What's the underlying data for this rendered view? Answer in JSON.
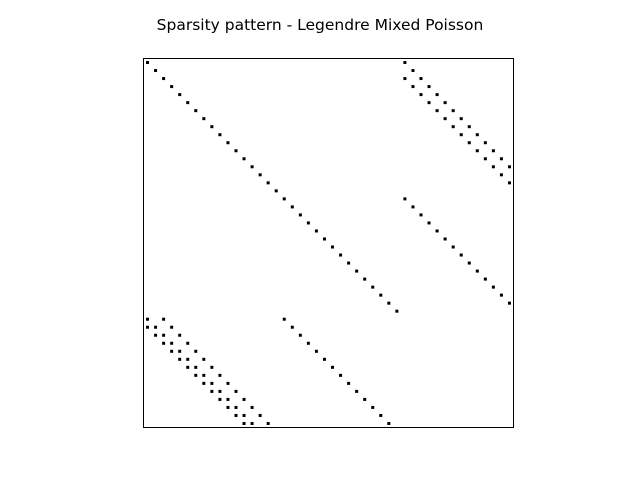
{
  "chart_data": {
    "type": "scatter",
    "title": "Sparsity pattern - Legendre Mixed Poisson",
    "xlabel": "",
    "ylabel": "",
    "matrix_size": 46,
    "axes_ticks": false,
    "grid": false,
    "marker_color": "#000000",
    "xlim": [
      -0.5,
      45.5
    ],
    "ylim": [
      45.5,
      -0.5
    ],
    "segments": [
      {
        "row_start": 0,
        "col_start": 0,
        "count": 32
      },
      {
        "row_start": 0,
        "col_start": 32,
        "count": 14
      },
      {
        "row_start": 1,
        "col_start": 33,
        "count": 13
      },
      {
        "row_start": 2,
        "col_start": 32,
        "count": 14
      },
      {
        "row_start": 17,
        "col_start": 32,
        "count": 14
      },
      {
        "row_start": 32,
        "col_start": 0,
        "count": 14
      },
      {
        "row_start": 32,
        "col_start": 2,
        "count": 14
      },
      {
        "row_start": 33,
        "col_start": 0,
        "count": 13
      },
      {
        "row_start": 32,
        "col_start": 17,
        "count": 14
      }
    ]
  }
}
